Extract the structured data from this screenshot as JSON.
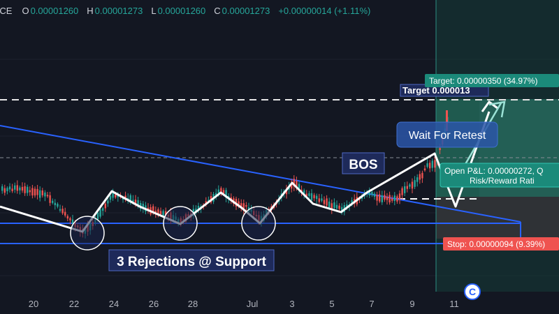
{
  "header": {
    "symbol_fragment": "NCE",
    "o_label": "O",
    "o": "0.00001260",
    "h_label": "H",
    "h": "0.00001273",
    "l_label": "L",
    "l": "0.00001260",
    "c_label": "C",
    "c": "0.00001273",
    "change": "+0.00000014 (+1.11%)"
  },
  "chart_data": {
    "type": "candlestick",
    "x_ticks": [
      "20",
      "22",
      "24",
      "26",
      "28",
      "Jul",
      "3",
      "5",
      "7",
      "9",
      "11"
    ],
    "annotations": {
      "support_label": "3 Rejections @ Support",
      "bos_label": "BOS",
      "retest_label": "Wait For Retest",
      "target_line_label": "Target 0.000013",
      "target_box": "Target: 0.00000350 (34.97%)",
      "stop_box": "Stop: 0.00000094 (9.39%)",
      "pnl_line1": "Open P&L: 0.00000272, Q",
      "pnl_line2": "Risk/Reward Rati"
    },
    "colors": {
      "background": "#131722",
      "up": "#26a69a",
      "down": "#ef5350",
      "trendline": "#2962ff",
      "profit_zone": "#1f5a4f",
      "loss_zone": "#3a3a3f",
      "target_tag": "#1b8a7a",
      "stop_tag": "#ef5350",
      "label_box": "#1e2a5a"
    }
  }
}
